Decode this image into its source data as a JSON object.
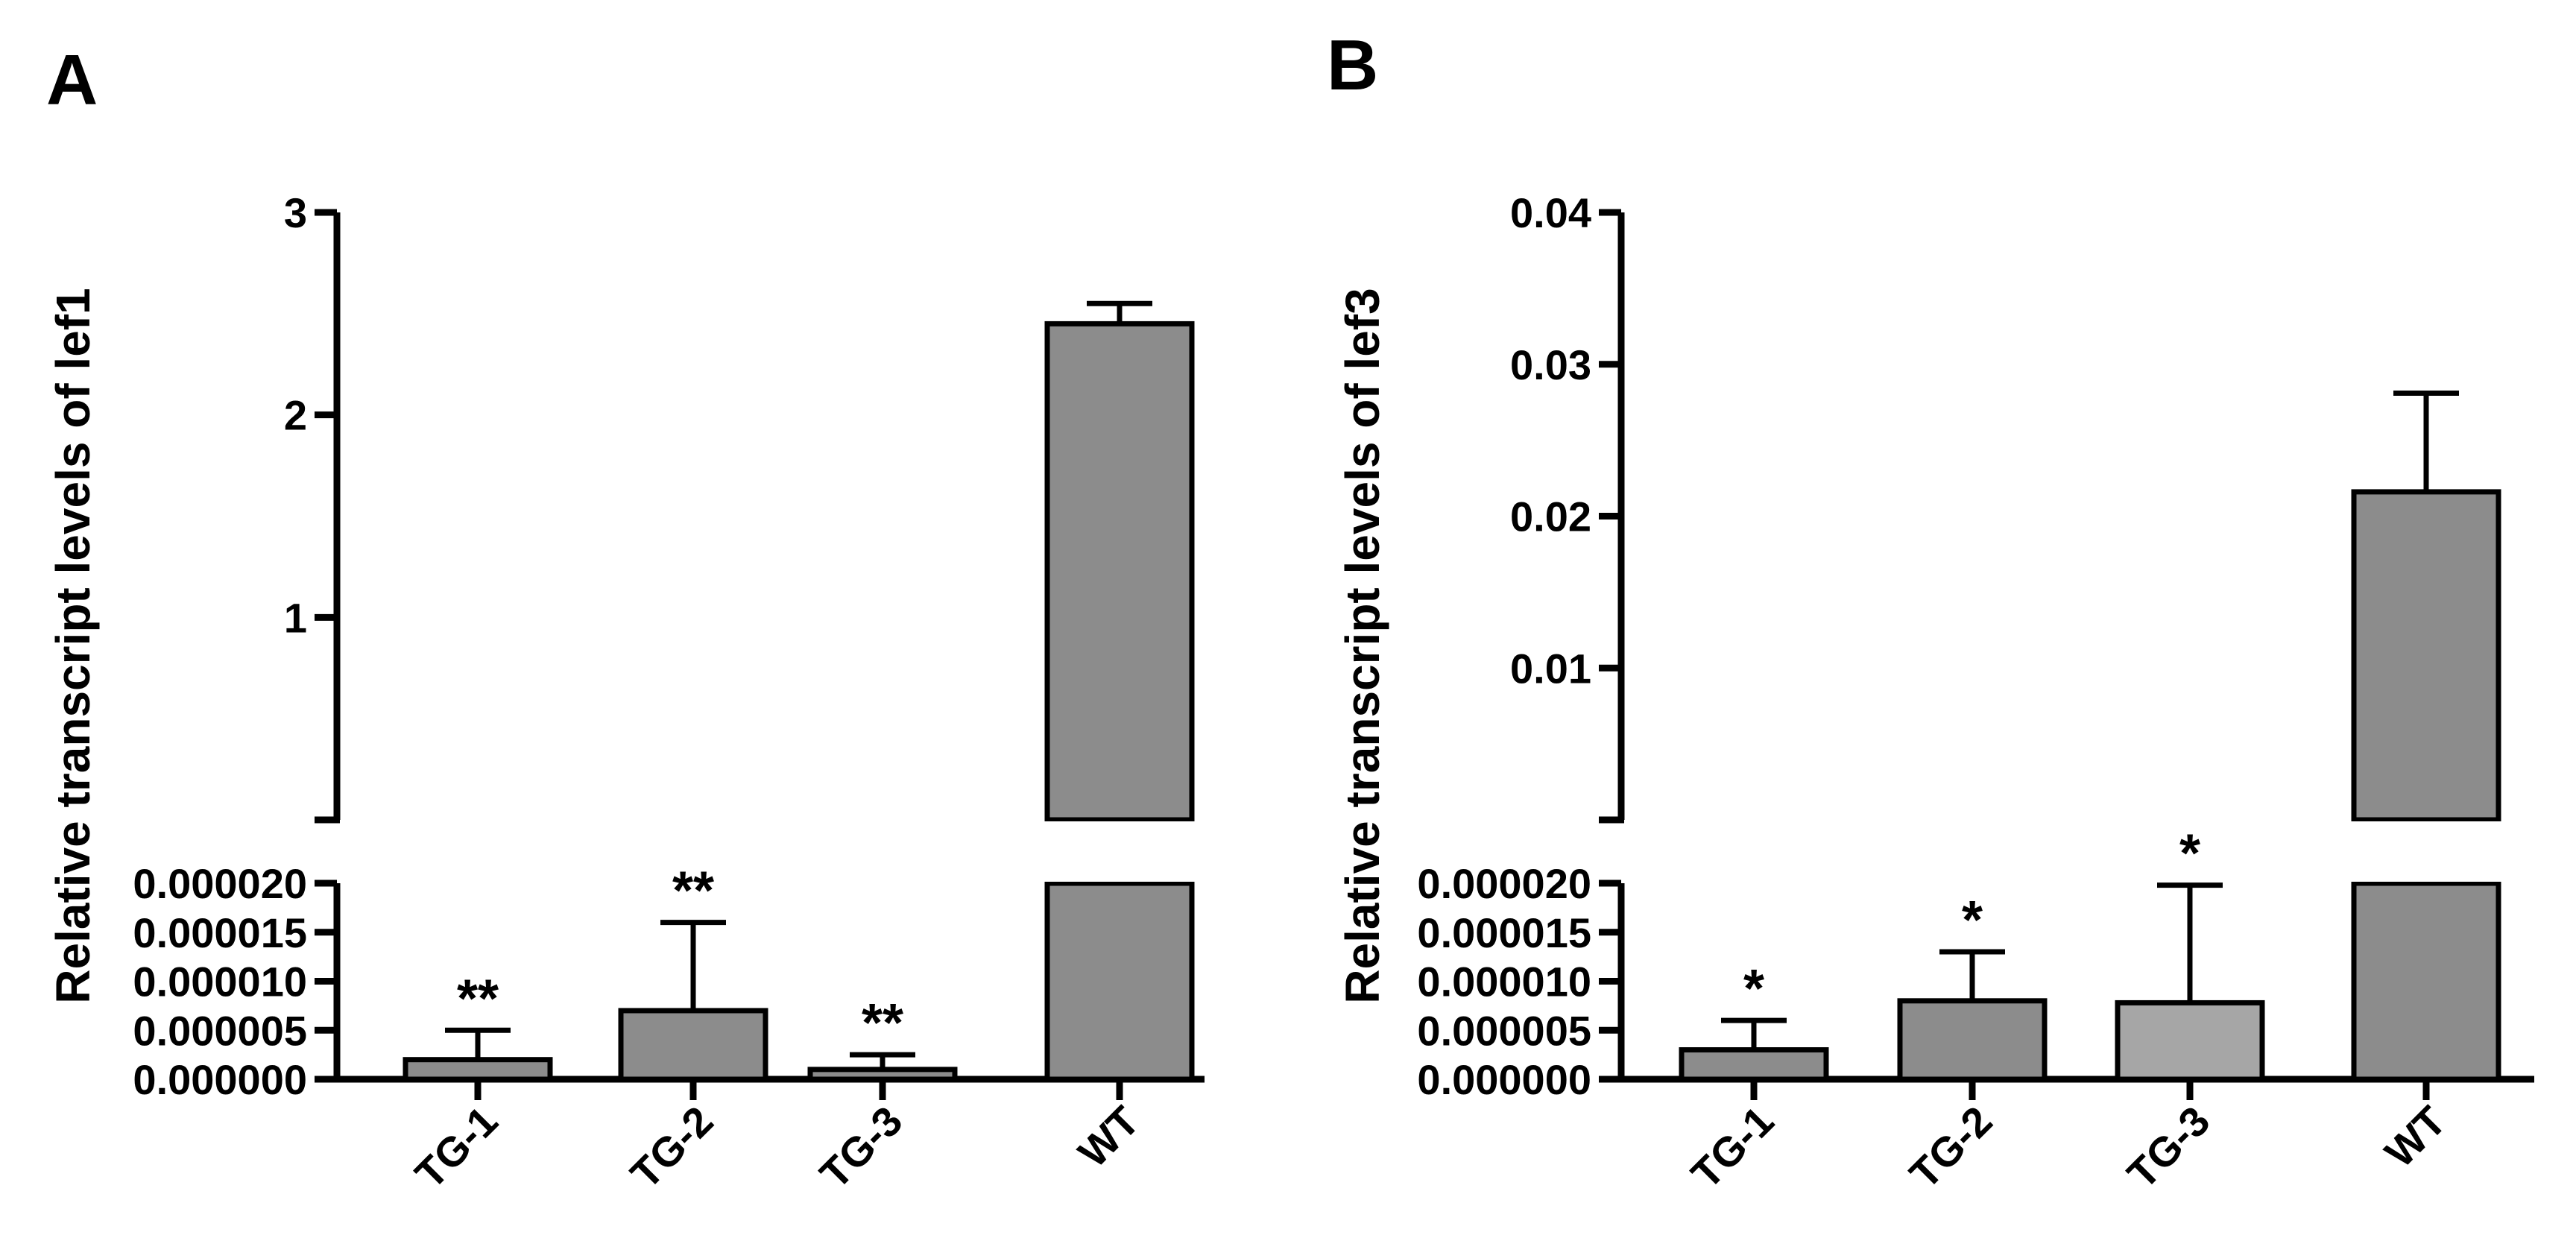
{
  "colors": {
    "bar": "#8c8c8c",
    "bar_light": "#a6a6a6",
    "axis": "#000000",
    "background": "#ffffff"
  },
  "chart_data": [
    {
      "panel": "A",
      "type": "bar",
      "ylabel": "Relative transcript levels of lef1",
      "categories": [
        "TG-1",
        "TG-2",
        "TG-3",
        "WT"
      ],
      "values": [
        2e-06,
        7e-06,
        1e-06,
        2.45
      ],
      "errors": [
        3e-06,
        9e-06,
        1.5e-06,
        0.1
      ],
      "significance": [
        "**",
        "**",
        "**",
        ""
      ],
      "upper_segment": {
        "range": [
          0,
          3
        ],
        "ticks": [
          "1",
          "2",
          "3"
        ]
      },
      "lower_segment": {
        "range": [
          0,
          2e-05
        ],
        "ticks": [
          "0.000000",
          "0.000005",
          "0.000010",
          "0.000015",
          "0.000020"
        ]
      }
    },
    {
      "panel": "B",
      "type": "bar",
      "ylabel": "Relative transcript levels of lef3",
      "categories": [
        "TG-1",
        "TG-2",
        "TG-3",
        "WT"
      ],
      "values": [
        3e-06,
        8e-06,
        7.8e-06,
        0.0216
      ],
      "errors": [
        3e-06,
        5e-06,
        1.2e-05,
        0.0065
      ],
      "significance": [
        "*",
        "*",
        "*",
        ""
      ],
      "upper_segment": {
        "range": [
          0,
          0.04
        ],
        "ticks": [
          "0.01",
          "0.02",
          "0.03",
          "0.04"
        ]
      },
      "lower_segment": {
        "range": [
          0,
          2e-05
        ],
        "ticks": [
          "0.000000",
          "0.000005",
          "0.000010",
          "0.000015",
          "0.000020"
        ]
      }
    }
  ]
}
